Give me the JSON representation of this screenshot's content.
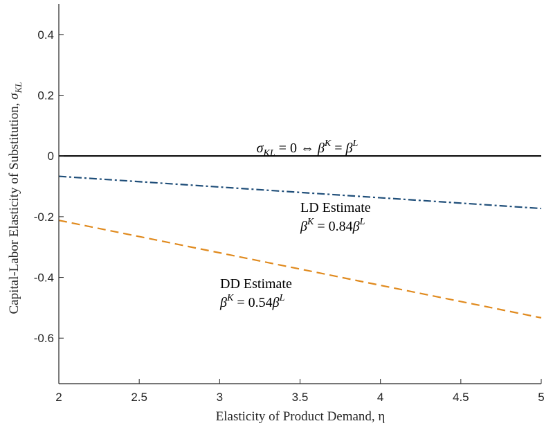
{
  "chart_data": {
    "type": "line",
    "xlabel": "Elasticity of Product Demand, η",
    "ylabel": "Capital-Labor Elasticity of Substitution, σKL",
    "xlim": [
      2,
      5
    ],
    "ylim": [
      -0.75,
      0.5
    ],
    "xticks": [
      2,
      2.5,
      3,
      3.5,
      4,
      4.5,
      5
    ],
    "xtick_labels": [
      "2",
      "2.5",
      "3",
      "3.5",
      "4",
      "4.5",
      "5"
    ],
    "yticks": [
      0.4,
      0.2,
      0,
      -0.2,
      -0.4,
      -0.6
    ],
    "ytick_labels": [
      "0.4",
      "0.2",
      "0",
      "-0.2",
      "-0.4",
      "-0.6"
    ],
    "grid": false,
    "series": [
      {
        "key": "zero",
        "x": [
          2,
          5
        ],
        "y": [
          0,
          0
        ],
        "color": "#000000",
        "dash": "solid"
      },
      {
        "key": "ld",
        "x": [
          2,
          5
        ],
        "y": [
          -0.067,
          -0.173
        ],
        "color": "#1f4e79",
        "dash": "dashdot"
      },
      {
        "key": "dd",
        "x": [
          2,
          5
        ],
        "y": [
          -0.212,
          -0.533
        ],
        "color": "#e08a1e",
        "dash": "dashed"
      }
    ],
    "annotations": {
      "zero_label": "σKL = 0 ⇔ βK = βL",
      "ld_title": "LD Estimate",
      "ld_formula": "βK = 0.84βL",
      "dd_title": "DD Estimate",
      "dd_formula": "βK = 0.54βL"
    }
  }
}
